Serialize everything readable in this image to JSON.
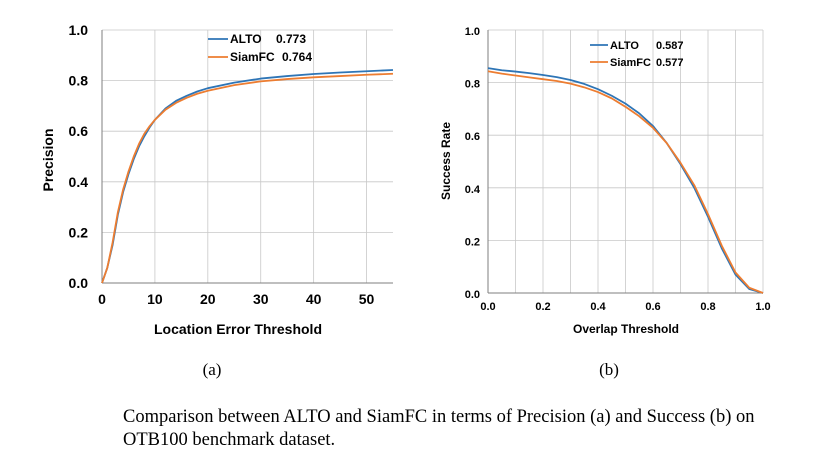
{
  "caption": "Comparison between ALTO and SiamFC in terms of Precision (a) and Success (b) on OTB100 benchmark dataset.",
  "colors": {
    "alto": "#2e75b6",
    "siamfc": "#ed7d31",
    "grid": "#c8c8c8",
    "axis": "#7f7f7f"
  },
  "chart_data": [
    {
      "type": "line",
      "sublabel": "(a)",
      "xlabel": "Location Error Threshold",
      "ylabel": "Precision",
      "xlim": [
        0,
        55
      ],
      "ylim": [
        0,
        1.0
      ],
      "xticks": [
        0,
        10,
        20,
        30,
        40,
        50
      ],
      "yticks": [
        0.0,
        0.2,
        0.4,
        0.6,
        0.8,
        1.0
      ],
      "ytick_labels": [
        "0.0",
        "0.2",
        "0.4",
        "0.6",
        "0.8",
        "1.0"
      ],
      "xtick_labels": [
        "0",
        "10",
        "20",
        "30",
        "40",
        "50"
      ],
      "grid": true,
      "legend_position": "top-center",
      "series": [
        {
          "name": "ALTO",
          "score": "0.773",
          "color": "#2e75b6",
          "x": [
            0,
            1,
            2,
            3,
            4,
            5,
            6,
            7,
            8,
            9,
            10,
            12,
            14,
            16,
            18,
            20,
            25,
            30,
            35,
            40,
            45,
            50,
            55
          ],
          "y": [
            0.0,
            0.06,
            0.15,
            0.27,
            0.36,
            0.43,
            0.49,
            0.54,
            0.58,
            0.615,
            0.645,
            0.69,
            0.72,
            0.74,
            0.757,
            0.77,
            0.792,
            0.808,
            0.818,
            0.826,
            0.832,
            0.837,
            0.842
          ]
        },
        {
          "name": "SiamFC",
          "score": "0.764",
          "color": "#ed7d31",
          "x": [
            0,
            1,
            2,
            3,
            4,
            5,
            6,
            7,
            8,
            9,
            10,
            12,
            14,
            16,
            18,
            20,
            25,
            30,
            35,
            40,
            45,
            50,
            55
          ],
          "y": [
            0.0,
            0.06,
            0.16,
            0.28,
            0.37,
            0.44,
            0.5,
            0.55,
            0.59,
            0.62,
            0.645,
            0.685,
            0.712,
            0.732,
            0.748,
            0.76,
            0.782,
            0.797,
            0.806,
            0.813,
            0.818,
            0.823,
            0.827
          ]
        }
      ]
    },
    {
      "type": "line",
      "sublabel": "(b)",
      "xlabel": "Overlap Threshold",
      "ylabel": "Success Rate",
      "xlim": [
        0,
        1.0
      ],
      "ylim": [
        0,
        1.0
      ],
      "xticks": [
        0.0,
        0.2,
        0.4,
        0.6,
        0.8,
        1.0
      ],
      "yticks": [
        0.0,
        0.2,
        0.4,
        0.6,
        0.8,
        1.0
      ],
      "xtick_labels": [
        "0.0",
        "0.2",
        "0.4",
        "0.6",
        "0.8",
        "1.0"
      ],
      "ytick_labels": [
        "0.0",
        "0.2",
        "0.4",
        "0.6",
        "0.8",
        "1.0"
      ],
      "xgrid_step": 0.1,
      "grid": true,
      "legend_position": "top-right",
      "series": [
        {
          "name": "ALTO",
          "score": "0.587",
          "color": "#2e75b6",
          "x": [
            0.0,
            0.05,
            0.1,
            0.15,
            0.2,
            0.25,
            0.3,
            0.35,
            0.4,
            0.45,
            0.5,
            0.55,
            0.6,
            0.65,
            0.7,
            0.75,
            0.8,
            0.85,
            0.9,
            0.95,
            1.0
          ],
          "y": [
            0.855,
            0.847,
            0.842,
            0.836,
            0.829,
            0.821,
            0.81,
            0.795,
            0.775,
            0.75,
            0.72,
            0.683,
            0.635,
            0.57,
            0.49,
            0.4,
            0.29,
            0.17,
            0.07,
            0.015,
            0.0
          ]
        },
        {
          "name": "SiamFC",
          "score": "0.577",
          "color": "#ed7d31",
          "x": [
            0.0,
            0.05,
            0.1,
            0.15,
            0.2,
            0.25,
            0.3,
            0.35,
            0.4,
            0.45,
            0.5,
            0.55,
            0.6,
            0.65,
            0.7,
            0.75,
            0.8,
            0.85,
            0.9,
            0.95,
            1.0
          ],
          "y": [
            0.843,
            0.834,
            0.827,
            0.82,
            0.813,
            0.806,
            0.796,
            0.782,
            0.764,
            0.74,
            0.708,
            0.672,
            0.628,
            0.57,
            0.495,
            0.41,
            0.3,
            0.18,
            0.078,
            0.02,
            0.0
          ]
        }
      ]
    }
  ]
}
